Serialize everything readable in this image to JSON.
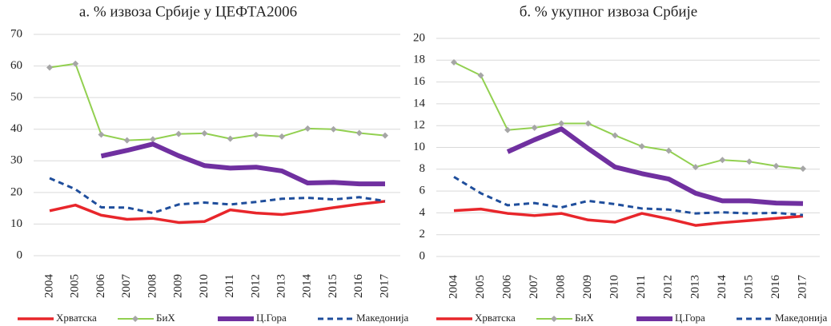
{
  "chart_data": [
    {
      "type": "line",
      "title": "а. % извоза Србије у ЦЕФТА2006",
      "categories": [
        "2004",
        "2005",
        "2006",
        "2007",
        "2008",
        "2009",
        "2010",
        "2011",
        "2012",
        "2013",
        "2014",
        "2015",
        "2016",
        "2017"
      ],
      "ylim": [
        0,
        70
      ],
      "yticks": [
        0,
        10,
        20,
        30,
        40,
        50,
        60,
        70
      ],
      "grid": true,
      "legend": "bottom",
      "series": [
        {
          "name": "Хрватска",
          "color": "#e8262b",
          "line_width": 3.5,
          "values": [
            14.2,
            16,
            12.8,
            11.5,
            11.8,
            10.5,
            10.8,
            14.5,
            13.5,
            13,
            14,
            15.2,
            16.3,
            17.2
          ]
        },
        {
          "name": "БиХ",
          "color": "#92d050",
          "marker": "diamond",
          "marker_color": "#a6a6a6",
          "line_width": 2,
          "values": [
            59.5,
            60.7,
            38.3,
            36.5,
            36.8,
            38.5,
            38.7,
            37,
            38.2,
            37.7,
            40.2,
            40,
            38.8,
            38
          ]
        },
        {
          "name": "Ц.Гора",
          "color": "#7030a0",
          "line_width": 6,
          "values": [
            null,
            null,
            31.5,
            33.3,
            35.3,
            31.6,
            28.5,
            27.7,
            28,
            26.8,
            23,
            23.2,
            22.7,
            22.7
          ]
        },
        {
          "name": "Македонија",
          "color": "#1f4e9c",
          "dashed": true,
          "line_width": 3,
          "values": [
            24.5,
            21,
            15.3,
            15.2,
            13.5,
            16.2,
            16.8,
            16.2,
            17,
            18,
            18.3,
            17.8,
            18.5,
            17.3
          ]
        }
      ]
    },
    {
      "type": "line",
      "title": "б. % укупног извоза Србије",
      "categories": [
        "2004",
        "2005",
        "2006",
        "2007",
        "2008",
        "2009",
        "2010",
        "2011",
        "2012",
        "2013",
        "2014",
        "2015",
        "2016",
        "2017"
      ],
      "ylim": [
        0,
        20
      ],
      "yticks": [
        0,
        2,
        4,
        6,
        8,
        10,
        12,
        14,
        16,
        18,
        20
      ],
      "grid": true,
      "legend": "bottom",
      "series": [
        {
          "name": "Хрватска",
          "color": "#e8262b",
          "line_width": 3.5,
          "values": [
            4.2,
            4.35,
            3.95,
            3.75,
            3.95,
            3.35,
            3.15,
            3.95,
            3.45,
            2.85,
            3.1,
            3.3,
            3.5,
            3.7
          ]
        },
        {
          "name": "БиХ",
          "color": "#92d050",
          "marker": "diamond",
          "marker_color": "#a6a6a6",
          "line_width": 2,
          "values": [
            17.8,
            16.6,
            11.6,
            11.8,
            12.2,
            12.2,
            11.1,
            10.1,
            9.7,
            8.2,
            8.85,
            8.7,
            8.3,
            8.05
          ]
        },
        {
          "name": "Ц.Гора",
          "color": "#7030a0",
          "line_width": 6,
          "values": [
            null,
            null,
            9.6,
            10.7,
            11.7,
            9.9,
            8.2,
            7.6,
            7.1,
            5.8,
            5.1,
            5.1,
            4.9,
            4.85
          ]
        },
        {
          "name": "Македонија",
          "color": "#1f4e9c",
          "dashed": true,
          "line_width": 3,
          "values": [
            7.3,
            5.8,
            4.7,
            4.9,
            4.5,
            5.1,
            4.8,
            4.4,
            4.3,
            3.95,
            4.05,
            3.95,
            4.0,
            3.8
          ]
        }
      ]
    }
  ]
}
